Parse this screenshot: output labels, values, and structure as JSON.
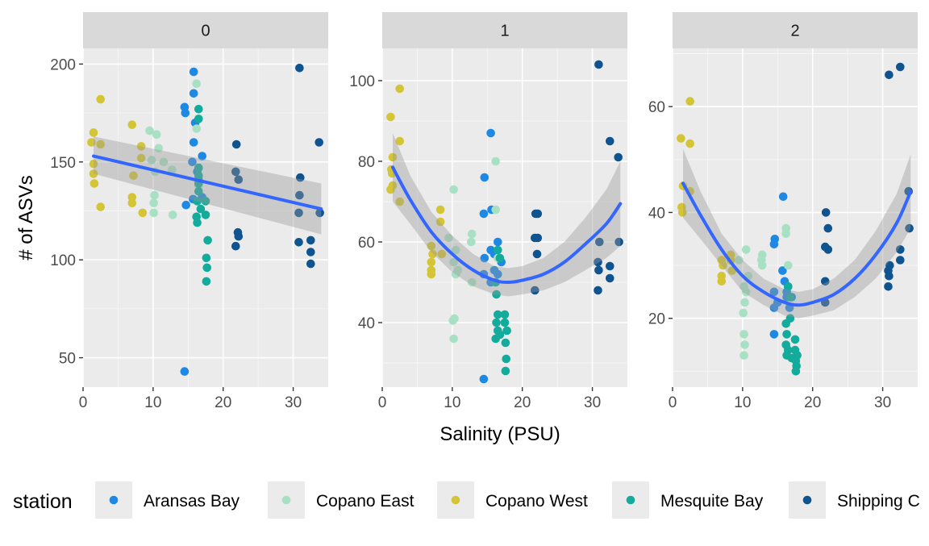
{
  "chart_data": {
    "type": "scatter",
    "xlabel": "Salinity (PSU)",
    "ylabel": "# of ASVs",
    "colors": {
      "Aransas Bay": "#1e88e5",
      "Copano East": "#a8e0c4",
      "Copano West": "#d4c536",
      "Mesquite Bay": "#12ab9c",
      "Shipping C": "#10548f"
    },
    "legend": {
      "title": "station",
      "position": "bottom",
      "entries": [
        "Aransas Bay",
        "Copano East",
        "Copano West",
        "Mesquite Bay",
        "Shipping C"
      ]
    },
    "grid": true,
    "panels": [
      {
        "label": "0",
        "xlim": [
          0,
          35
        ],
        "ylim": [
          35,
          208
        ],
        "xticks": [
          0,
          10,
          20,
          30
        ],
        "yticks": [
          50,
          100,
          150,
          200
        ],
        "trend": {
          "type": "linear",
          "x": [
            1.5,
            34
          ],
          "y": [
            153,
            126
          ],
          "ci_upper": [
            163,
            139
          ],
          "ci_lower": [
            144,
            113
          ]
        },
        "points": {
          "Aransas Bay": [
            [
              14.5,
              178
            ],
            [
              14.6,
              175
            ],
            [
              15.8,
              196
            ],
            [
              15.8,
              185
            ],
            [
              16,
              170
            ],
            [
              15.8,
              160
            ],
            [
              15.6,
              150
            ],
            [
              17,
              153
            ],
            [
              16.3,
              145
            ],
            [
              15.7,
              131
            ],
            [
              14.7,
              128
            ],
            [
              14.5,
              43
            ],
            [
              16.5,
              141
            ],
            [
              17,
              132
            ]
          ],
          "Copano East": [
            [
              9.5,
              166
            ],
            [
              10.5,
              164
            ],
            [
              10.8,
              157
            ],
            [
              9.8,
              151
            ],
            [
              10.3,
              145
            ],
            [
              10.2,
              133
            ],
            [
              10.1,
              129
            ],
            [
              10.1,
              124
            ],
            [
              12.8,
              123
            ],
            [
              16.2,
              190
            ],
            [
              16.2,
              167
            ],
            [
              16.5,
              138
            ],
            [
              12.7,
              146
            ],
            [
              11.5,
              150
            ]
          ],
          "Copano West": [
            [
              1.5,
              165
            ],
            [
              1.2,
              160
            ],
            [
              1.5,
              149
            ],
            [
              1.5,
              144
            ],
            [
              1.6,
              139
            ],
            [
              2.5,
              182
            ],
            [
              2.5,
              159
            ],
            [
              2.5,
              127
            ],
            [
              7,
              169
            ],
            [
              7.2,
              143
            ],
            [
              7,
              132
            ],
            [
              7,
              129
            ],
            [
              8.3,
              158
            ],
            [
              8.3,
              152
            ],
            [
              8.5,
              124
            ]
          ],
          "Mesquite Bay": [
            [
              16.5,
              177
            ],
            [
              16.5,
              172
            ],
            [
              16.5,
              147
            ],
            [
              16.5,
              143
            ],
            [
              16.5,
              139
            ],
            [
              16.5,
              135
            ],
            [
              16.3,
              130
            ],
            [
              16.2,
              122
            ],
            [
              16.3,
              119
            ],
            [
              17.5,
              130
            ],
            [
              17.5,
              123
            ],
            [
              17.8,
              110
            ],
            [
              17.6,
              101
            ],
            [
              17.7,
              96
            ],
            [
              17.6,
              89
            ],
            [
              16.8,
              126
            ]
          ],
          "Shipping C": [
            [
              30.9,
              198
            ],
            [
              31,
              142
            ],
            [
              30.9,
              133
            ],
            [
              30.8,
              124
            ],
            [
              30.8,
              109
            ],
            [
              32.5,
              110
            ],
            [
              32.5,
              104
            ],
            [
              32.5,
              98
            ],
            [
              33.7,
              160
            ],
            [
              33.8,
              124
            ],
            [
              21.9,
              159
            ],
            [
              21.8,
              145
            ],
            [
              22.2,
              141
            ],
            [
              22.1,
              114
            ],
            [
              22.2,
              112
            ],
            [
              21.8,
              107
            ]
          ]
        }
      },
      {
        "label": "1",
        "xlim": [
          0,
          35
        ],
        "ylim": [
          24,
          108
        ],
        "xticks": [
          0,
          10,
          20,
          30
        ],
        "yticks": [
          40,
          60,
          80,
          100
        ],
        "trend": {
          "type": "quadratic",
          "x": [
            1.5,
            4,
            7,
            10,
            13,
            16,
            18,
            20,
            23,
            26,
            29,
            32,
            34
          ],
          "y": [
            78.5,
            70.5,
            62.5,
            57,
            53,
            50.5,
            50,
            50.5,
            52,
            55,
            59.5,
            64.5,
            69.5
          ],
          "ci_upper": [
            87,
            76.5,
            67.5,
            61.5,
            57,
            54,
            53.5,
            54,
            56,
            60,
            66,
            73,
            80
          ],
          "ci_lower": [
            70,
            64.5,
            57.5,
            52.5,
            49,
            47,
            46.5,
            47,
            48,
            50,
            53,
            56,
            59
          ]
        },
        "points": {
          "Aransas Bay": [
            [
              15.5,
              87
            ],
            [
              14.6,
              76
            ],
            [
              14.5,
              67
            ],
            [
              15.6,
              68
            ],
            [
              15.5,
              58
            ],
            [
              16,
              57
            ],
            [
              16.5,
              60
            ],
            [
              14.6,
              56
            ],
            [
              16,
              53
            ],
            [
              14.5,
              52
            ],
            [
              15.5,
              50
            ],
            [
              17,
              55
            ],
            [
              16.5,
              52
            ],
            [
              14.5,
              26
            ]
          ],
          "Copano East": [
            [
              9.5,
              61
            ],
            [
              10.5,
              58
            ],
            [
              10.2,
              73
            ],
            [
              10.2,
              55
            ],
            [
              10.8,
              53
            ],
            [
              10.5,
              52
            ],
            [
              12.8,
              62
            ],
            [
              12.7,
              60
            ],
            [
              12.8,
              50
            ],
            [
              16.2,
              80
            ],
            [
              16.2,
              68
            ],
            [
              16.5,
              56
            ],
            [
              10.3,
              41
            ],
            [
              10.1,
              40.5
            ],
            [
              10.2,
              36
            ]
          ],
          "Copano West": [
            [
              1.2,
              91
            ],
            [
              1.5,
              81
            ],
            [
              1.3,
              78
            ],
            [
              1.4,
              77
            ],
            [
              1.5,
              74
            ],
            [
              1.2,
              73
            ],
            [
              2.5,
              98
            ],
            [
              2.5,
              85
            ],
            [
              2.5,
              70
            ],
            [
              7,
              59
            ],
            [
              7.2,
              57
            ],
            [
              7,
              55
            ],
            [
              7,
              53
            ],
            [
              7,
              52
            ],
            [
              8.3,
              68
            ],
            [
              8.3,
              65
            ],
            [
              8.5,
              57
            ]
          ],
          "Mesquite Bay": [
            [
              16.5,
              58
            ],
            [
              16.8,
              56
            ],
            [
              16.2,
              50
            ],
            [
              16.3,
              47
            ],
            [
              16.5,
              42
            ],
            [
              16.3,
              40
            ],
            [
              16.5,
              38
            ],
            [
              17.5,
              42
            ],
            [
              17.5,
              40
            ],
            [
              17.8,
              38
            ],
            [
              17.6,
              35
            ],
            [
              17.7,
              31
            ],
            [
              17.6,
              28
            ],
            [
              16.2,
              36
            ],
            [
              16.8,
              37
            ]
          ],
          "Shipping C": [
            [
              30.9,
              104
            ],
            [
              31,
              60
            ],
            [
              30.8,
              55
            ],
            [
              30.9,
              53
            ],
            [
              30.8,
              48
            ],
            [
              32.5,
              85
            ],
            [
              32.5,
              54
            ],
            [
              32.5,
              51
            ],
            [
              33.7,
              81
            ],
            [
              33.8,
              60
            ],
            [
              21.9,
              67
            ],
            [
              22.2,
              67
            ],
            [
              21.8,
              61
            ],
            [
              22.2,
              61
            ],
            [
              22.1,
              57
            ],
            [
              21.8,
              48
            ]
          ]
        }
      },
      {
        "label": "2",
        "xlim": [
          0,
          35
        ],
        "ylim": [
          7,
          71
        ],
        "xticks": [
          0,
          10,
          20,
          30
        ],
        "yticks": [
          20,
          40,
          60
        ],
        "trend": {
          "type": "quadratic",
          "x": [
            1.5,
            4,
            7,
            10,
            13,
            16,
            18,
            20,
            23,
            26,
            29,
            32,
            34
          ],
          "y": [
            45.5,
            39.5,
            33,
            28,
            25,
            23,
            22.5,
            23,
            24.5,
            27.5,
            32,
            38,
            44
          ],
          "ci_upper": [
            52,
            44,
            36,
            31,
            27.5,
            25.5,
            25,
            25.5,
            27.5,
            31,
            36.5,
            43.5,
            51
          ],
          "ci_lower": [
            39,
            35,
            30,
            25,
            22.5,
            20.5,
            20,
            20.5,
            21.5,
            24,
            27.5,
            32.5,
            37
          ]
        },
        "points": {
          "Aransas Bay": [
            [
              15.8,
              43
            ],
            [
              14.6,
              35
            ],
            [
              14.5,
              34
            ],
            [
              15.7,
              29
            ],
            [
              16,
              27
            ],
            [
              16.5,
              26
            ],
            [
              16.3,
              25
            ],
            [
              14.5,
              25
            ],
            [
              15,
              23
            ],
            [
              14.5,
              22
            ],
            [
              16.3,
              24
            ],
            [
              17,
              24
            ],
            [
              16.7,
              22
            ],
            [
              14.5,
              17
            ]
          ],
          "Copano East": [
            [
              9.5,
              31
            ],
            [
              10.5,
              33
            ],
            [
              10.8,
              28
            ],
            [
              10.2,
              26
            ],
            [
              10.5,
              25
            ],
            [
              12.8,
              32
            ],
            [
              12.7,
              31
            ],
            [
              12.8,
              30
            ],
            [
              16.2,
              37
            ],
            [
              16.2,
              36
            ],
            [
              16.5,
              30
            ],
            [
              10.3,
              23
            ],
            [
              10.1,
              21
            ],
            [
              10.2,
              17
            ],
            [
              10.3,
              15
            ],
            [
              10.2,
              13
            ]
          ],
          "Copano West": [
            [
              1.2,
              54
            ],
            [
              1.5,
              45
            ],
            [
              1.3,
              41
            ],
            [
              1.4,
              40
            ],
            [
              2.5,
              61
            ],
            [
              2.5,
              53
            ],
            [
              2.5,
              44
            ],
            [
              7,
              31
            ],
            [
              7.2,
              30
            ],
            [
              7,
              28
            ],
            [
              7,
              27
            ],
            [
              8.3,
              32
            ],
            [
              8.3,
              31
            ],
            [
              8.5,
              29
            ]
          ],
          "Mesquite Bay": [
            [
              16.5,
              26
            ],
            [
              16.8,
              24
            ],
            [
              16.2,
              19
            ],
            [
              16.3,
              17
            ],
            [
              16.5,
              14
            ],
            [
              16.3,
              13
            ],
            [
              17.5,
              16
            ],
            [
              17.5,
              14
            ],
            [
              17.8,
              13
            ],
            [
              17.6,
              12
            ],
            [
              17.7,
              11
            ],
            [
              17.6,
              10
            ],
            [
              16.2,
              15
            ],
            [
              16.8,
              20
            ],
            [
              17,
              12.5
            ]
          ],
          "Shipping C": [
            [
              30.9,
              66
            ],
            [
              31,
              30
            ],
            [
              30.8,
              29
            ],
            [
              30.9,
              28
            ],
            [
              30.8,
              26
            ],
            [
              32.5,
              67.5
            ],
            [
              32.5,
              33
            ],
            [
              32.5,
              31
            ],
            [
              33.7,
              44
            ],
            [
              33.8,
              37
            ],
            [
              21.9,
              40
            ],
            [
              22.2,
              37
            ],
            [
              21.8,
              33.5
            ],
            [
              22.2,
              33
            ],
            [
              21.8,
              27
            ],
            [
              21.8,
              23
            ]
          ]
        }
      }
    ]
  }
}
